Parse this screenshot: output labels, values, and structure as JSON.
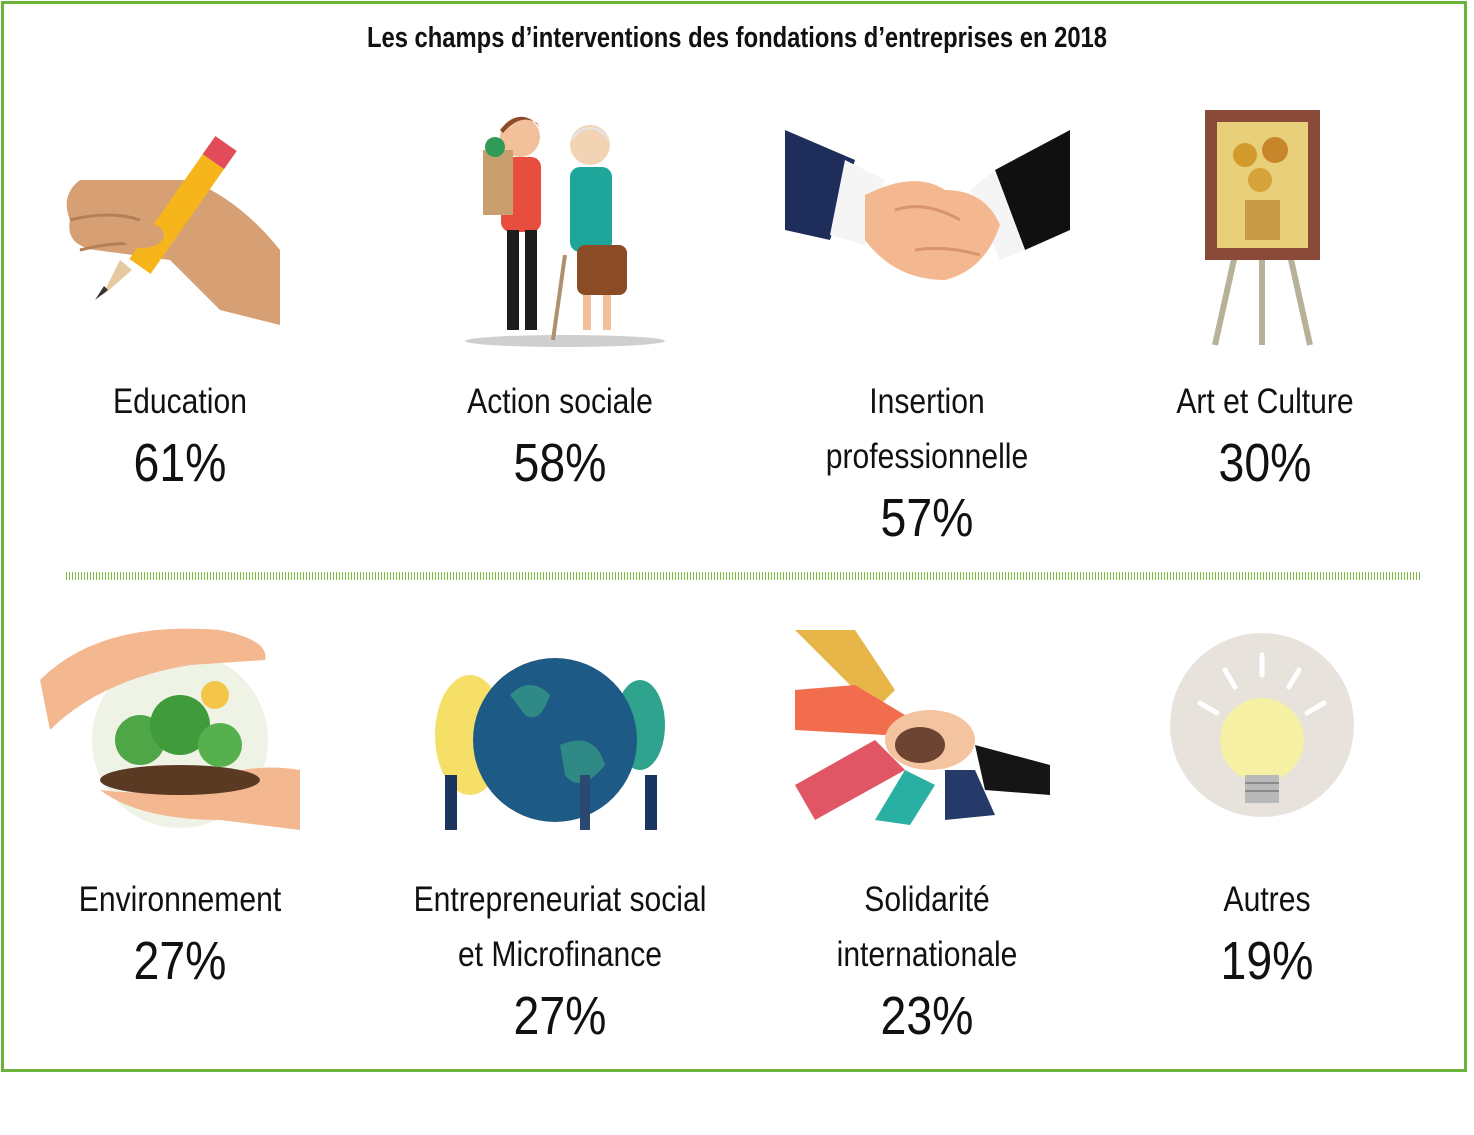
{
  "title": "Les champs d’interventions des fondations d’entreprises en 2018",
  "colors": {
    "frame": "#6ab43c",
    "divider": "#7fbf45",
    "text": "#111111"
  },
  "items": [
    {
      "label": [
        "Education"
      ],
      "value_text": "61%",
      "icon": "pencil-hand-icon"
    },
    {
      "label": [
        "Action sociale"
      ],
      "value_text": "58%",
      "icon": "young-man-helping-elderly-woman-icon"
    },
    {
      "label": [
        "Insertion",
        "professionnelle"
      ],
      "value_text": "57%",
      "icon": "handshake-icon"
    },
    {
      "label": [
        "Art et Culture"
      ],
      "value_text": "30%",
      "icon": "painting-on-easel-icon"
    },
    {
      "label": [
        "Environnement"
      ],
      "value_text": "27%",
      "icon": "hands-protecting-trees-icon"
    },
    {
      "label": [
        "Entrepreneuriat social",
        "et Microfinance"
      ],
      "value_text": "27%",
      "icon": "people-around-globe-icon"
    },
    {
      "label": [
        "Solidarité",
        "internationale"
      ],
      "value_text": "23%",
      "icon": "stacked-hands-icon"
    },
    {
      "label": [
        "Autres"
      ],
      "value_text": "19%",
      "icon": "light-bulb-icon"
    }
  ],
  "chart_data": {
    "type": "table",
    "title": "Les champs d’interventions des fondations d’entreprises en 2018",
    "categories": [
      "Education",
      "Action sociale",
      "Insertion professionnelle",
      "Art et Culture",
      "Environnement",
      "Entrepreneuriat social et Microfinance",
      "Solidarité internationale",
      "Autres"
    ],
    "values": [
      61,
      58,
      57,
      30,
      27,
      27,
      23,
      19
    ],
    "unit": "%"
  }
}
